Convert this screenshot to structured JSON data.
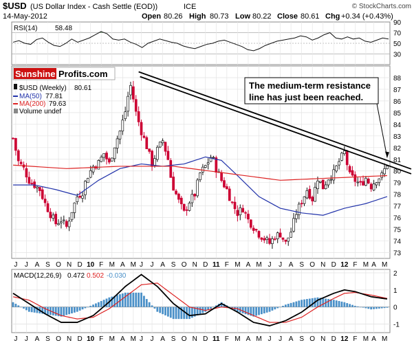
{
  "header": {
    "symbol": "$USD",
    "description": "(US Dollar Index - Cash Settle (EOD))",
    "exchange": "ICE",
    "date": "14-May-2012",
    "open_label": "Open",
    "open": "80.26",
    "high_label": "High",
    "high": "80.73",
    "low_label": "Low",
    "low": "80.22",
    "close_label": "Close",
    "close": "80.61",
    "chg_label": "Chg",
    "chg": "+0.34 (+0.43%)",
    "watermark": "© StockCharts.com"
  },
  "colors": {
    "price_up": "#111111",
    "price_down": "#cc0033",
    "ma50": "#2233aa",
    "ma200": "#dd2222",
    "macd_line": "#000000",
    "signal_line": "#dd2222",
    "histogram": "#4a90c8",
    "rsi_fill": "#4a8a4a",
    "logo_red": "#cc1111"
  },
  "logo": {
    "part1": "Sunshine",
    "part2": "Profits.com"
  },
  "annotation": {
    "line1": "The medium-term resistance",
    "line2": "line has just been reached."
  },
  "chart_data": [
    {
      "type": "line",
      "panel": "RSI",
      "label": "RSI(14)",
      "current": "58.48",
      "ylim": [
        10,
        90
      ],
      "y_ticks": [
        "90",
        "70",
        "50",
        "30"
      ],
      "reference_lines": [
        70,
        50,
        30
      ],
      "values": [
        52,
        55,
        50,
        48,
        57,
        60,
        52,
        46,
        44,
        50,
        58,
        52,
        56,
        60,
        66,
        72,
        68,
        58,
        56,
        58,
        52,
        48,
        42,
        50,
        54,
        58,
        55,
        52,
        50,
        45,
        42,
        40,
        44,
        48,
        50,
        54,
        56,
        52,
        48,
        44,
        38,
        36,
        40,
        46,
        50,
        54,
        56,
        58,
        60,
        64,
        62,
        56,
        60,
        66,
        70,
        60,
        58,
        62,
        58,
        60,
        54,
        52,
        56,
        60,
        58
      ]
    },
    {
      "type": "candlestick",
      "panel": "price",
      "label": "$USD (Weekly)",
      "current": "80.61",
      "ylim": [
        72.5,
        89
      ],
      "y_ticks": [
        "88",
        "87",
        "86",
        "85",
        "84",
        "83",
        "82",
        "81",
        "80",
        "79",
        "78",
        "77",
        "76",
        "75",
        "74",
        "73"
      ],
      "x_ticks": [
        "J",
        "J",
        "A",
        "S",
        "O",
        "N",
        "D",
        "10",
        "F",
        "M",
        "A",
        "M",
        "J",
        "J",
        "A",
        "S",
        "O",
        "N",
        "D",
        "11",
        "F",
        "M",
        "A",
        "M",
        "J",
        "J",
        "A",
        "S",
        "O",
        "N",
        "D",
        "12",
        "F",
        "M",
        "A",
        "M"
      ],
      "close_path": [
        [
          0,
          82.8
        ],
        [
          2,
          80.8
        ],
        [
          4,
          80.2
        ],
        [
          6,
          79.2
        ],
        [
          8,
          78.8
        ],
        [
          10,
          78.4
        ],
        [
          12,
          77.2
        ],
        [
          14,
          76.3
        ],
        [
          16,
          75.5
        ],
        [
          18,
          75.8
        ],
        [
          20,
          75.2
        ],
        [
          22,
          76.6
        ],
        [
          24,
          77.8
        ],
        [
          26,
          78.2
        ],
        [
          27,
          79.0
        ],
        [
          28,
          79.6
        ],
        [
          30,
          80.4
        ],
        [
          32,
          80.7
        ],
        [
          34,
          81.5
        ],
        [
          36,
          80.6
        ],
        [
          38,
          82.2
        ],
        [
          40,
          83.4
        ],
        [
          42,
          85.1
        ],
        [
          43,
          86.4
        ],
        [
          44,
          87.3
        ],
        [
          45,
          86.2
        ],
        [
          46,
          85.0
        ],
        [
          48,
          83.4
        ],
        [
          50,
          82.1
        ],
        [
          52,
          80.6
        ],
        [
          54,
          81.8
        ],
        [
          56,
          82.6
        ],
        [
          58,
          81.0
        ],
        [
          59,
          79.5
        ],
        [
          60,
          78.6
        ],
        [
          62,
          77.4
        ],
        [
          64,
          76.4
        ],
        [
          66,
          77.4
        ],
        [
          68,
          78.0
        ],
        [
          70,
          79.8
        ],
        [
          72,
          80.4
        ],
        [
          74,
          81.2
        ],
        [
          75,
          80.9
        ],
        [
          76,
          80.2
        ],
        [
          78,
          79.2
        ],
        [
          80,
          78.4
        ],
        [
          82,
          77.2
        ],
        [
          84,
          76.4
        ],
        [
          86,
          76.8
        ],
        [
          88,
          75.8
        ],
        [
          90,
          75.2
        ],
        [
          92,
          74.6
        ],
        [
          94,
          74.2
        ],
        [
          96,
          73.8
        ],
        [
          98,
          74.4
        ],
        [
          100,
          74.6
        ],
        [
          102,
          73.8
        ],
        [
          104,
          74.8
        ],
        [
          106,
          76.4
        ],
        [
          108,
          77.4
        ],
        [
          110,
          78.4
        ],
        [
          112,
          77.6
        ],
        [
          114,
          79.4
        ],
        [
          116,
          78.6
        ],
        [
          118,
          79.4
        ],
        [
          120,
          79.8
        ],
        [
          122,
          80.8
        ],
        [
          124,
          81.6
        ],
        [
          126,
          79.6
        ],
        [
          128,
          79.2
        ],
        [
          130,
          78.8
        ],
        [
          132,
          79.4
        ],
        [
          134,
          78.7
        ],
        [
          136,
          79.3
        ],
        [
          138,
          79.6
        ],
        [
          140,
          80.6
        ]
      ],
      "ma50": {
        "label": "MA(50)",
        "current": "77.81",
        "points": [
          [
            0,
            78.8
          ],
          [
            8,
            78.8
          ],
          [
            16,
            78.4
          ],
          [
            24,
            77.9
          ],
          [
            32,
            79.2
          ],
          [
            40,
            80.2
          ],
          [
            48,
            80.6
          ],
          [
            56,
            80.4
          ],
          [
            64,
            80.6
          ],
          [
            72,
            81.2
          ],
          [
            78,
            80.9
          ],
          [
            84,
            79.6
          ],
          [
            92,
            77.8
          ],
          [
            100,
            76.8
          ],
          [
            108,
            76.4
          ],
          [
            116,
            76.2
          ],
          [
            124,
            76.8
          ],
          [
            132,
            77.2
          ],
          [
            140,
            77.8
          ]
        ]
      },
      "ma200": {
        "label": "MA(200)",
        "current": "79.63",
        "points": [
          [
            0,
            80.5
          ],
          [
            20,
            80.2
          ],
          [
            40,
            80.4
          ],
          [
            60,
            80.4
          ],
          [
            80,
            79.8
          ],
          [
            100,
            79.2
          ],
          [
            120,
            79.4
          ],
          [
            140,
            79.6
          ]
        ]
      },
      "volume_label": "Volume undef",
      "resistance_line": {
        "start": [
          47,
          88.5
        ],
        "end": [
          140,
          80.9
        ]
      }
    },
    {
      "type": "line",
      "panel": "MACD",
      "label": "MACD(12,26,9)",
      "macd_value": "0.472",
      "signal_value": "0.502",
      "histogram_value": "-0.030",
      "ylim": [
        -1.5,
        2.2
      ],
      "y_ticks": [
        "2",
        "1",
        "0",
        "-1"
      ],
      "macd": [
        [
          0,
          0.8
        ],
        [
          6,
          0.2
        ],
        [
          12,
          -0.4
        ],
        [
          18,
          -0.9
        ],
        [
          24,
          -0.9
        ],
        [
          30,
          -0.5
        ],
        [
          36,
          0.3
        ],
        [
          42,
          1.2
        ],
        [
          48,
          1.9
        ],
        [
          54,
          1.2
        ],
        [
          60,
          0.2
        ],
        [
          66,
          -0.5
        ],
        [
          72,
          -0.4
        ],
        [
          78,
          0.2
        ],
        [
          84,
          -0.3
        ],
        [
          90,
          -0.9
        ],
        [
          96,
          -1.1
        ],
        [
          102,
          -0.8
        ],
        [
          108,
          -0.3
        ],
        [
          114,
          0.4
        ],
        [
          120,
          0.8
        ],
        [
          124,
          1.0
        ],
        [
          128,
          0.9
        ],
        [
          134,
          0.6
        ],
        [
          140,
          0.47
        ]
      ],
      "signal": [
        [
          0,
          0.6
        ],
        [
          6,
          0.4
        ],
        [
          12,
          -0.1
        ],
        [
          18,
          -0.5
        ],
        [
          24,
          -0.7
        ],
        [
          30,
          -0.6
        ],
        [
          36,
          -0.1
        ],
        [
          42,
          0.6
        ],
        [
          48,
          1.3
        ],
        [
          54,
          1.4
        ],
        [
          60,
          0.7
        ],
        [
          66,
          0.0
        ],
        [
          72,
          -0.2
        ],
        [
          78,
          0.0
        ],
        [
          84,
          -0.1
        ],
        [
          90,
          -0.5
        ],
        [
          96,
          -0.9
        ],
        [
          102,
          -0.9
        ],
        [
          108,
          -0.6
        ],
        [
          114,
          0.0
        ],
        [
          120,
          0.5
        ],
        [
          124,
          0.8
        ],
        [
          128,
          0.85
        ],
        [
          134,
          0.7
        ],
        [
          140,
          0.5
        ]
      ]
    }
  ]
}
